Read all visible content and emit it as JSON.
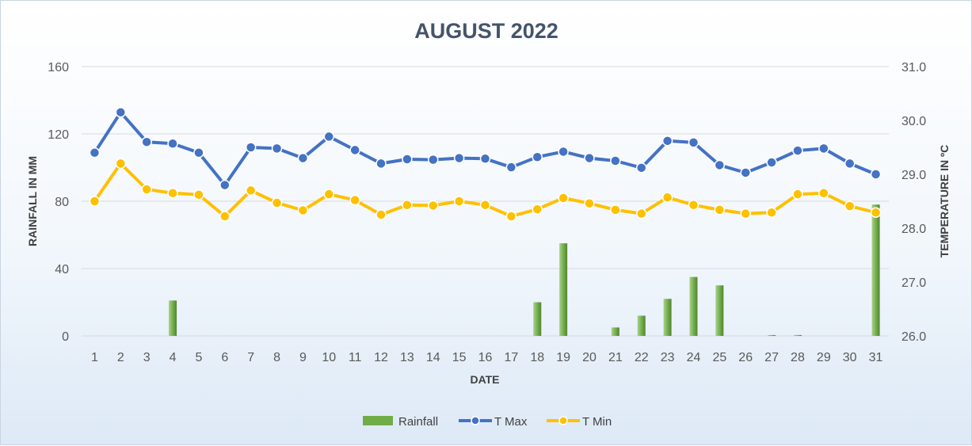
{
  "chart_data": {
    "type": "bar",
    "title": "AUGUST 2022",
    "xlabel": "DATE",
    "ylabel": "RAINFALL IN MM",
    "y2label": "TEMPERATURE IN ºC",
    "categories": [
      "1",
      "2",
      "3",
      "4",
      "5",
      "6",
      "7",
      "8",
      "9",
      "10",
      "11",
      "12",
      "13",
      "14",
      "15",
      "16",
      "17",
      "18",
      "19",
      "20",
      "21",
      "22",
      "23",
      "24",
      "25",
      "26",
      "27",
      "28",
      "29",
      "30",
      "31"
    ],
    "ylim": [
      0,
      160
    ],
    "y_ticks": [
      "0",
      "40",
      "80",
      "120",
      "160"
    ],
    "y2lim": [
      26.0,
      31.0
    ],
    "y2_ticks": [
      "26.0",
      "27.0",
      "28.0",
      "29.0",
      "30.0",
      "31.0"
    ],
    "grid": true,
    "legend_position": "bottom",
    "series": [
      {
        "name": "Rainfall",
        "type": "bar",
        "axis": "left",
        "color": "#70ad47",
        "values": [
          0,
          0,
          0,
          21,
          0,
          0,
          0,
          0,
          0,
          0,
          0,
          0,
          0,
          0,
          0,
          0,
          0,
          20,
          55,
          0,
          5,
          12,
          22,
          35,
          30,
          0,
          0.5,
          0.5,
          0,
          0,
          78
        ]
      },
      {
        "name": "T Max",
        "type": "line",
        "axis": "right",
        "color": "#4472c4",
        "values": [
          29.4,
          30.15,
          29.6,
          29.57,
          29.4,
          28.8,
          29.5,
          29.48,
          29.3,
          29.7,
          29.45,
          29.2,
          29.28,
          29.27,
          29.3,
          29.29,
          29.13,
          29.32,
          29.42,
          29.3,
          29.25,
          29.12,
          29.62,
          29.59,
          29.17,
          29.03,
          29.22,
          29.44,
          29.48,
          29.2,
          29.0
        ]
      },
      {
        "name": "T Min",
        "type": "line",
        "axis": "right",
        "color": "#ffc000",
        "values": [
          28.5,
          29.2,
          28.72,
          28.65,
          28.62,
          28.22,
          28.7,
          28.47,
          28.33,
          28.63,
          28.52,
          28.25,
          28.43,
          28.42,
          28.5,
          28.43,
          28.22,
          28.35,
          28.56,
          28.46,
          28.34,
          28.27,
          28.57,
          28.43,
          28.34,
          28.27,
          28.29,
          28.63,
          28.65,
          28.41,
          28.29
        ]
      }
    ]
  }
}
